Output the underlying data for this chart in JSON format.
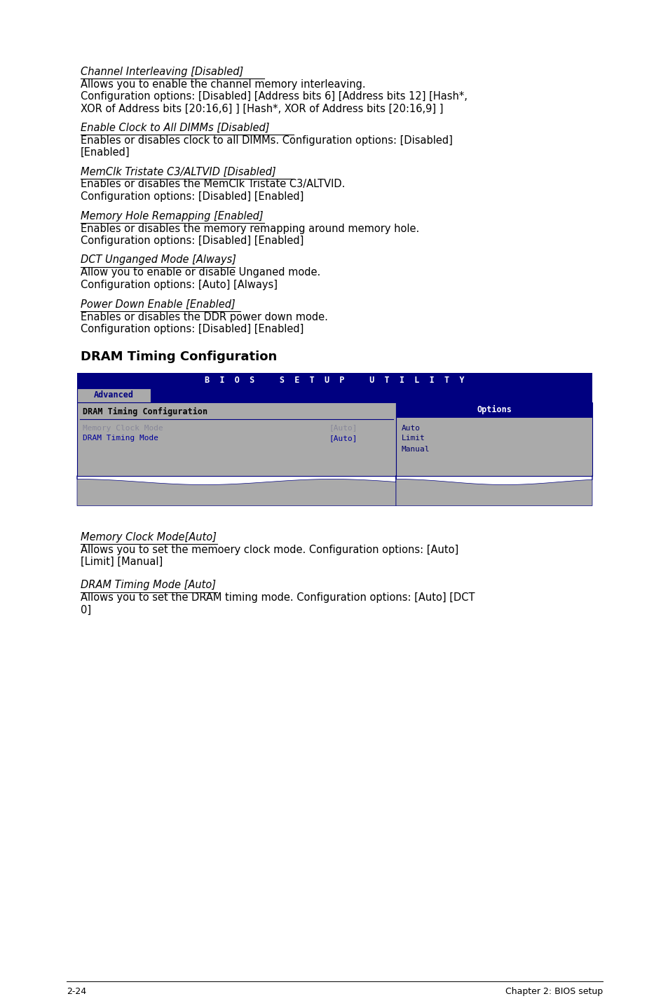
{
  "sections_top": [
    {
      "title": "Channel Interleaving [Disabled]",
      "body": "Allows you to enable the channel memory interleaving.\nConfiguration options: [Disabled] [Address bits 6] [Address bits 12] [Hash*,\nXOR of Address bits [20:16,6] ] [Hash*, XOR of Address bits [20:16,9] ]"
    },
    {
      "title": "Enable Clock to All DIMMs [Disabled]",
      "body": "Enables or disables clock to all DIMMs. Configuration options: [Disabled]\n[Enabled]"
    },
    {
      "title": "MemClk Tristate C3/ALTVID [Disabled]",
      "body": "Enables or disables the MemClk Tristate C3/ALTVID.\nConfiguration options: [Disabled] [Enabled]"
    },
    {
      "title": "Memory Hole Remapping [Enabled]",
      "body": "Enables or disables the memory remapping around memory hole.\nConfiguration options: [Disabled] [Enabled]"
    },
    {
      "title": "DCT Unganged Mode [Always]",
      "body": "Allow you to enable or disable Unganed mode.\nConfiguration options: [Auto] [Always]"
    },
    {
      "title": "Power Down Enable [Enabled]",
      "body": "Enables or disables the DDR power down mode.\nConfiguration options: [Disabled] [Enabled]"
    }
  ],
  "dram_heading": "DRAM Timing Configuration",
  "bios_title": "BIOS SETUP UTILITY",
  "bios_tab": "Advanced",
  "bios_menu_title": "DRAM Timing Configuration",
  "bios_col1_items": [
    "Memory Clock Mode",
    "DRAM Timing Mode"
  ],
  "bios_col1_values": [
    "[Auto]",
    "[Auto]"
  ],
  "bios_options_label": "Options",
  "bios_options_items": [
    "Auto",
    "Limit",
    "Manual"
  ],
  "sections_bottom": [
    {
      "title": "Memory Clock Mode[Auto]",
      "body": "Allows you to set the memoery clock mode. Configuration options: [Auto]\n[Limit] [Manual]"
    },
    {
      "title": "DRAM Timing Mode [Auto]",
      "body": "Allows you to set the DRAM timing mode. Configuration options: [Auto] [DCT\n0]"
    }
  ],
  "footer_left": "2-24",
  "footer_right": "Chapter 2: BIOS setup",
  "color_dark_blue": "#000080",
  "color_gray": "#aaaaaa",
  "color_blue_text": "#000066",
  "color_white": "#ffffff",
  "color_black": "#000000",
  "color_item1": "#888899",
  "color_item2": "#000099"
}
